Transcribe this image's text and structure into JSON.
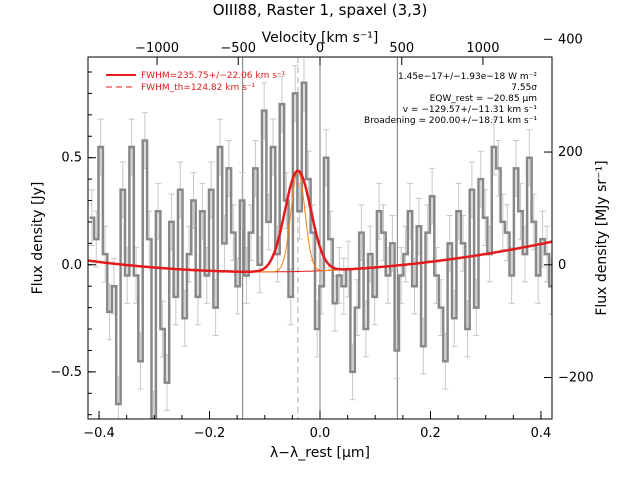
{
  "chart_data": {
    "type": "line",
    "title": "OIII88, Raster 1, spaxel (3,3)",
    "xlabel": "λ−λ_rest [μm]",
    "ylabel": "Flux density [Jy]",
    "x2label": "Velocity [km s⁻¹]",
    "y2label": "Flux density [MJy sr⁻¹]",
    "xlim": [
      -0.42,
      0.42
    ],
    "ylim": [
      -0.72,
      0.97
    ],
    "xticks": [
      -0.4,
      -0.2,
      0.0,
      0.2,
      0.4
    ],
    "xtick_labels": [
      "−0.4",
      "−0.2",
      "0.0",
      "0.2",
      "0.4"
    ],
    "yticks": [
      -0.5,
      0.0,
      0.5
    ],
    "ytick_labels": [
      "−0.5",
      "0.0",
      "0.5"
    ],
    "x2ticks": [
      -1000,
      -500,
      0,
      500,
      1000
    ],
    "x2tick_labels": [
      "−1000",
      "−500",
      "0",
      "500",
      "1000"
    ],
    "x2_tick_positions": [
      -0.295,
      -0.148,
      0.0,
      0.148,
      0.295
    ],
    "y2ticks": [
      -200,
      0,
      200,
      400
    ],
    "y2tick_labels": [
      "−200",
      "0",
      "200",
      "400"
    ],
    "y2_per_jy": 380,
    "vlines": [
      -0.14,
      0.0,
      0.14
    ],
    "center_dashed_x": -0.04,
    "grid": false,
    "legend_position": "top-left",
    "legend": [
      {
        "label": "FWHM=235.75+/−22.06 km s⁻¹",
        "style": "solid",
        "color": "#e41a1c"
      },
      {
        "label": "FWHM_th=124.82 km s⁻¹",
        "style": "dashed",
        "color": "#e41a1c"
      }
    ],
    "annotations": [
      "1.45e−17+/−1.93e−18 W m⁻²",
      "7.55σ",
      "EQW_rest = −20.85 μm",
      "v = −129.57+/−11.31 km s⁻¹",
      "Broadening = 200.00+/−18.71 km s⁻¹"
    ],
    "series": [
      {
        "kind": "data",
        "color": "#888888",
        "x": [
          -0.413,
          -0.405,
          -0.397,
          -0.389,
          -0.381,
          -0.373,
          -0.365,
          -0.357,
          -0.349,
          -0.341,
          -0.333,
          -0.325,
          -0.317,
          -0.309,
          -0.301,
          -0.293,
          -0.285,
          -0.277,
          -0.269,
          -0.261,
          -0.253,
          -0.245,
          -0.237,
          -0.229,
          -0.221,
          -0.213,
          -0.205,
          -0.197,
          -0.189,
          -0.181,
          -0.173,
          -0.165,
          -0.157,
          -0.149,
          -0.141,
          -0.133,
          -0.125,
          -0.117,
          -0.109,
          -0.101,
          -0.093,
          -0.085,
          -0.077,
          -0.069,
          -0.061,
          -0.053,
          -0.045,
          -0.037,
          -0.029,
          -0.021,
          -0.013,
          -0.005,
          0.003,
          0.011,
          0.019,
          0.027,
          0.035,
          0.043,
          0.051,
          0.059,
          0.067,
          0.075,
          0.083,
          0.091,
          0.099,
          0.107,
          0.115,
          0.123,
          0.131,
          0.139,
          0.147,
          0.155,
          0.163,
          0.171,
          0.179,
          0.187,
          0.195,
          0.203,
          0.211,
          0.219,
          0.227,
          0.235,
          0.243,
          0.251,
          0.259,
          0.267,
          0.275,
          0.283,
          0.291,
          0.299,
          0.307,
          0.315,
          0.323,
          0.331,
          0.339,
          0.347,
          0.355,
          0.363,
          0.371,
          0.379,
          0.387,
          0.395,
          0.403,
          0.411,
          0.419
        ],
        "y": [
          0.22,
          0.12,
          0.55,
          0.05,
          -0.22,
          -0.1,
          -0.65,
          0.35,
          -0.05,
          0.55,
          -0.05,
          -0.45,
          0.58,
          0.12,
          -0.72,
          0.25,
          -0.3,
          -0.55,
          0.2,
          -0.15,
          0.35,
          -0.25,
          0.05,
          0.3,
          -0.15,
          0.25,
          -0.05,
          0.35,
          -0.2,
          0.55,
          0.1,
          0.45,
          0.15,
          -0.1,
          0.3,
          -0.05,
          0.15,
          0.45,
          0.0,
          0.72,
          0.2,
          0.55,
          0.05,
          0.75,
          0.3,
          -0.15,
          0.8,
          0.25,
          0.85,
          0.4,
          0.15,
          -0.3,
          -0.1,
          0.5,
          0.12,
          -0.18,
          -0.05,
          -0.1,
          -0.02,
          -0.5,
          -0.2,
          0.15,
          -0.3,
          0.05,
          -0.15,
          0.25,
          0.15,
          -0.05,
          0.1,
          -0.4,
          -0.05,
          0.05,
          0.25,
          -0.1,
          0.18,
          -0.38,
          0.15,
          0.32,
          -0.05,
          -0.2,
          -0.45,
          0.1,
          -0.25,
          0.25,
          0.1,
          -0.3,
          0.35,
          -0.2,
          0.4,
          0.22,
          0.05,
          0.55,
          0.45,
          0.2,
          0.15,
          -0.05,
          0.45,
          0.25,
          0.05,
          0.5,
          0.2,
          -0.05,
          0.12,
          0.05,
          -0.1
        ],
        "yerr": 0.13
      },
      {
        "kind": "fit_total",
        "color": "#e41a1c",
        "note": "quadratic continuum + gaussian",
        "continuum": {
          "a": 0.52,
          "b": 0.105,
          "c": -0.028
        },
        "gaussian": {
          "amp": 0.47,
          "center": -0.04,
          "sigma": 0.0235
        }
      },
      {
        "kind": "continuum",
        "color": "#e41a1c",
        "continuum": {
          "a": 0.52,
          "b": 0.105,
          "c": -0.028
        }
      },
      {
        "kind": "thermal_component",
        "color": "#ff7f0e",
        "gaussian": {
          "amp": 0.47,
          "center": -0.04,
          "sigma": 0.0125
        }
      }
    ]
  }
}
